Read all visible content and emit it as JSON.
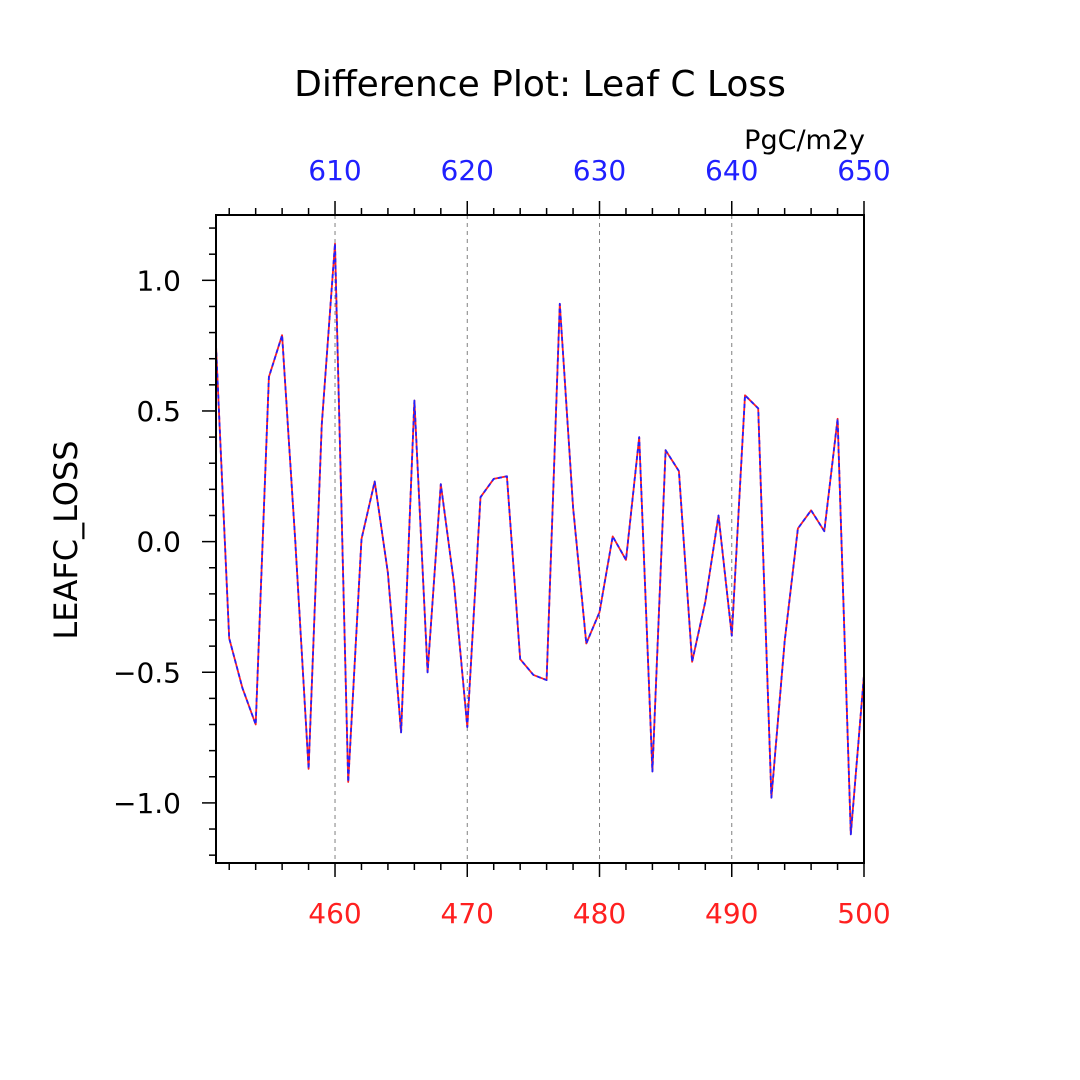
{
  "chart_data": {
    "type": "line",
    "title": "Difference Plot: Leaf C Loss",
    "units": "PgC/m2y",
    "ylabel": "LEAFC_LOSS",
    "xlim": [
      451,
      500
    ],
    "ylim": [
      -1.23,
      1.25
    ],
    "x_bottom": {
      "range": [
        451,
        500
      ],
      "ticks": [
        460,
        470,
        480,
        490,
        500
      ],
      "color": "#ff2020"
    },
    "x_top": {
      "range": [
        601,
        650
      ],
      "ticks": [
        610,
        620,
        630,
        640,
        650
      ],
      "color": "#2020ff"
    },
    "y_ticks": [
      {
        "value": 1.0,
        "label": "1.0"
      },
      {
        "value": 0.5,
        "label": "0.5"
      },
      {
        "value": 0.0,
        "label": "0.0"
      },
      {
        "value": -0.5,
        "label": "−0.5"
      },
      {
        "value": -1.0,
        "label": "−1.0"
      }
    ],
    "grid": "vertical dashed at labeled x ticks",
    "series": [
      {
        "color": "#ff2020",
        "style": "solid",
        "x": [
          451,
          452,
          453,
          454,
          455,
          456,
          457,
          458,
          459,
          460,
          461,
          462,
          463,
          464,
          465,
          466,
          467,
          468,
          469,
          470,
          471,
          472,
          473,
          474,
          475,
          476,
          477,
          478,
          479,
          480,
          481,
          482,
          483,
          484,
          485,
          486,
          487,
          488,
          489,
          490,
          491,
          492,
          493,
          494,
          495,
          496,
          497,
          498,
          499,
          500
        ],
        "y": [
          0.75,
          -0.37,
          -0.56,
          -0.7,
          0.63,
          0.79,
          0.0,
          -0.87,
          0.45,
          1.14,
          -0.92,
          0.01,
          0.23,
          -0.12,
          -0.73,
          0.54,
          -0.5,
          0.22,
          -0.16,
          -0.71,
          0.17,
          0.24,
          0.25,
          -0.45,
          -0.51,
          -0.53,
          0.91,
          0.13,
          -0.39,
          -0.27,
          0.02,
          -0.07,
          0.4,
          -0.88,
          0.35,
          0.27,
          -0.46,
          -0.23,
          0.1,
          -0.36,
          0.56,
          0.51,
          -0.98,
          -0.38,
          0.05,
          0.12,
          0.04,
          0.47,
          -1.12,
          -0.51
        ]
      },
      {
        "color": "#2020ff",
        "style": "dashed",
        "x": [
          451,
          452,
          453,
          454,
          455,
          456,
          457,
          458,
          459,
          460,
          461,
          462,
          463,
          464,
          465,
          466,
          467,
          468,
          469,
          470,
          471,
          472,
          473,
          474,
          475,
          476,
          477,
          478,
          479,
          480,
          481,
          482,
          483,
          484,
          485,
          486,
          487,
          488,
          489,
          490,
          491,
          492,
          493,
          494,
          495,
          496,
          497,
          498,
          499,
          500
        ],
        "y": [
          0.75,
          -0.37,
          -0.56,
          -0.7,
          0.63,
          0.79,
          0.0,
          -0.87,
          0.45,
          1.14,
          -0.92,
          0.01,
          0.23,
          -0.12,
          -0.73,
          0.54,
          -0.5,
          0.22,
          -0.16,
          -0.71,
          0.17,
          0.24,
          0.25,
          -0.45,
          -0.51,
          -0.53,
          0.91,
          0.13,
          -0.39,
          -0.27,
          0.02,
          -0.07,
          0.4,
          -0.88,
          0.35,
          0.27,
          -0.46,
          -0.23,
          0.1,
          -0.36,
          0.56,
          0.51,
          -0.98,
          -0.38,
          0.05,
          0.12,
          0.04,
          0.47,
          -1.12,
          -0.51
        ]
      }
    ]
  }
}
